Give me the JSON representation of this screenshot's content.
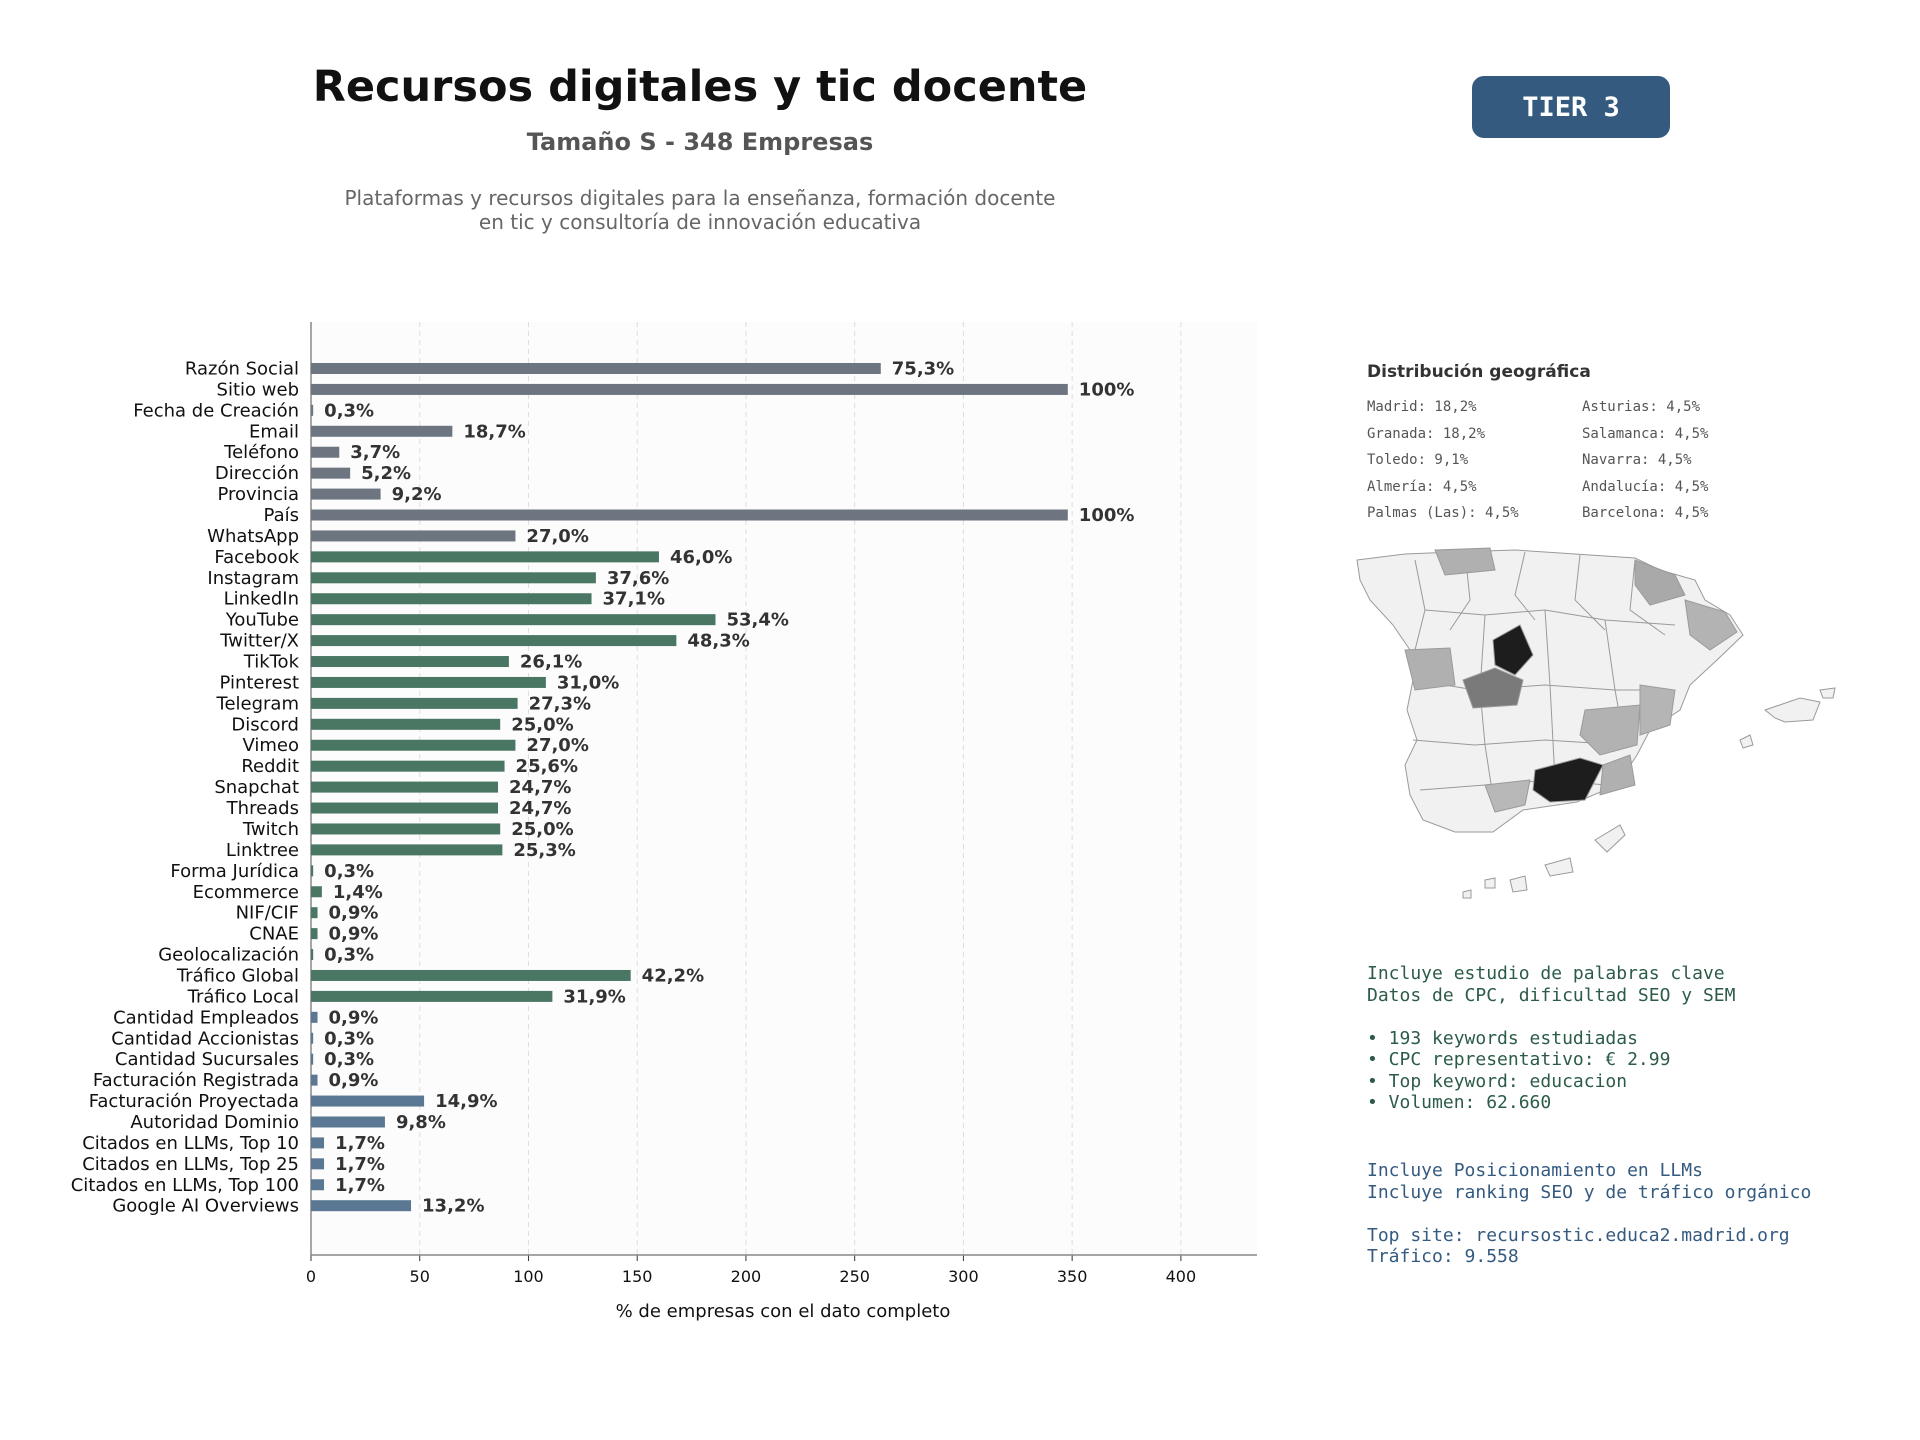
{
  "header": {
    "title": "Recursos digitales y tic docente",
    "subtitle": "Tamaño S - 348 Empresas",
    "description_line1": "Plataformas y recursos digitales para la enseñanza, formación docente",
    "description_line2": "en tic y consultoría de innovación educativa",
    "tier_badge": "TIER 3"
  },
  "colors": {
    "gray_bar": "#6c7580",
    "green_bar": "#4a7763",
    "blue_bar": "#5a7894",
    "tier_bg": "#355a80",
    "keywords_text": "#2c5c48",
    "llm_text": "#355a80"
  },
  "chart_data": {
    "type": "bar",
    "orientation": "horizontal",
    "xlabel": "% de empresas con el dato completo",
    "ylabel": "",
    "xlim": [
      0,
      435
    ],
    "xticks": [
      0,
      50,
      100,
      150,
      200,
      250,
      300,
      350,
      400
    ],
    "grid": "vertical dashed",
    "categories": [
      "Razón Social",
      "Sitio web",
      "Fecha de Creación",
      "Email",
      "Teléfono",
      "Dirección",
      "Provincia",
      "País",
      "WhatsApp",
      "Facebook",
      "Instagram",
      "LinkedIn",
      "YouTube",
      "Twitter/X",
      "TikTok",
      "Pinterest",
      "Telegram",
      "Discord",
      "Vimeo",
      "Reddit",
      "Snapchat",
      "Threads",
      "Twitch",
      "Linktree",
      "Forma Jurídica",
      "Ecommerce",
      "NIF/CIF",
      "CNAE",
      "Geolocalización",
      "Tráfico Global",
      "Tráfico Local",
      "Cantidad Empleados",
      "Cantidad Accionistas",
      "Cantidad Sucursales",
      "Facturación Registrada",
      "Facturación Proyectada",
      "Autoridad Dominio",
      "Citados en LLMs, Top 10",
      "Citados en LLMs, Top 25",
      "Citados en LLMs, Top 100",
      "Google AI Overviews"
    ],
    "values": [
      262,
      348,
      1,
      65,
      13,
      18,
      32,
      348,
      94,
      160,
      131,
      129,
      186,
      168,
      91,
      108,
      95,
      87,
      94,
      89,
      86,
      86,
      87,
      88,
      1,
      5,
      3,
      3,
      1,
      147,
      111,
      3,
      1,
      1,
      3,
      52,
      34,
      6,
      6,
      6,
      46
    ],
    "labels": [
      "75,3%",
      "100%",
      "0,3%",
      "18,7%",
      "3,7%",
      "5,2%",
      "9,2%",
      "100%",
      "27,0%",
      "46,0%",
      "37,6%",
      "37,1%",
      "53,4%",
      "48,3%",
      "26,1%",
      "31,0%",
      "27,3%",
      "25,0%",
      "27,0%",
      "25,6%",
      "24,7%",
      "24,7%",
      "25,0%",
      "25,3%",
      "0,3%",
      "1,4%",
      "0,9%",
      "0,9%",
      "0,3%",
      "42,2%",
      "31,9%",
      "0,9%",
      "0,3%",
      "0,3%",
      "0,9%",
      "14,9%",
      "9,8%",
      "1,7%",
      "1,7%",
      "1,7%",
      "13,2%"
    ],
    "groups": [
      "gray",
      "gray",
      "gray",
      "gray",
      "gray",
      "gray",
      "gray",
      "gray",
      "gray",
      "green",
      "green",
      "green",
      "green",
      "green",
      "green",
      "green",
      "green",
      "green",
      "green",
      "green",
      "green",
      "green",
      "green",
      "green",
      "green",
      "green",
      "green",
      "green",
      "green",
      "green",
      "green",
      "blue",
      "blue",
      "blue",
      "blue",
      "blue",
      "blue",
      "blue",
      "blue",
      "blue",
      "blue"
    ]
  },
  "geo": {
    "title": "Distribución geográfica",
    "items": [
      "Madrid: 18,2%",
      "Asturias: 4,5%",
      "Granada: 18,2%",
      "Salamanca: 4,5%",
      "Toledo: 9,1%",
      "Navarra: 4,5%",
      "Almería: 4,5%",
      "Andalucía: 4,5%",
      "Palmas (Las): 4,5%",
      "Barcelona: 4,5%"
    ]
  },
  "keywords": {
    "lines": [
      "Incluye estudio de palabras clave",
      "Datos de CPC, dificultad SEO y SEM",
      "",
      "• 193 keywords estudiadas",
      "• CPC representativo: € 2.99",
      "• Top keyword: educacion",
      "• Volumen: 62.660"
    ]
  },
  "llm": {
    "lines": [
      "Incluye Posicionamiento en LLMs",
      "Incluye ranking SEO y de tráfico orgánico",
      "",
      "Top site: recursostic.educa2.madrid.org",
      "Tráfico: 9.558"
    ]
  }
}
